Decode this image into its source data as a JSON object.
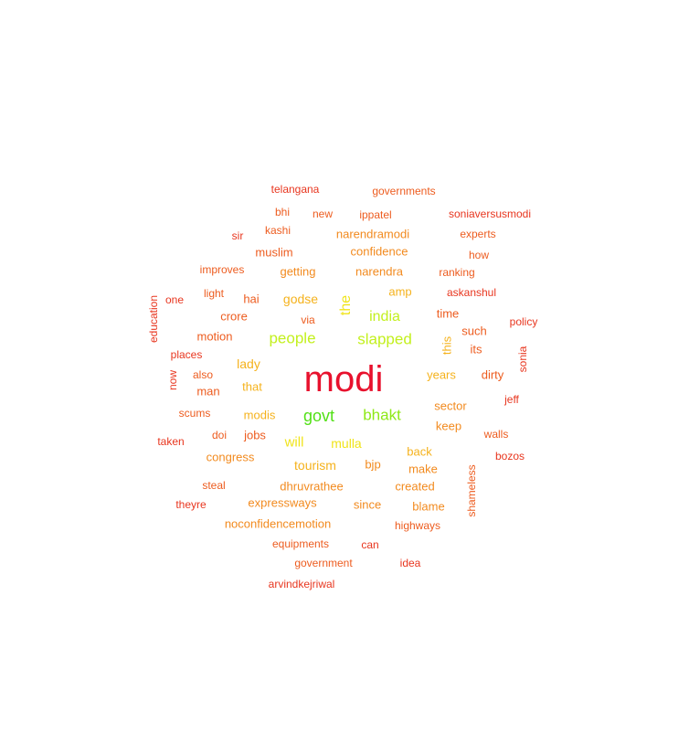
{
  "colors": {
    "red": "#e8112d",
    "red_orange": "#e8361f",
    "orange": "#ed5c1f",
    "amber": "#f28a1e",
    "gold": "#f5b21c",
    "yellow": "#f0e41a",
    "yellow_green": "#c3f01e",
    "green": "#8ee816",
    "bright_green": "#52e016"
  },
  "words": [
    {
      "text": "modi",
      "tier": "red",
      "vertical": false
    },
    {
      "text": "govt",
      "tier": "bright_green",
      "vertical": false
    },
    {
      "text": "bhakt",
      "tier": "green",
      "vertical": false
    },
    {
      "text": "slapped",
      "tier": "yellow_green",
      "vertical": false
    },
    {
      "text": "india",
      "tier": "yellow_green",
      "vertical": false
    },
    {
      "text": "people",
      "tier": "yellow_green",
      "vertical": false
    },
    {
      "text": "the",
      "tier": "yellow",
      "vertical": true
    },
    {
      "text": "will",
      "tier": "yellow",
      "vertical": false
    },
    {
      "text": "mulla",
      "tier": "yellow",
      "vertical": false
    },
    {
      "text": "godse",
      "tier": "gold",
      "vertical": false
    },
    {
      "text": "tourism",
      "tier": "gold",
      "vertical": false
    },
    {
      "text": "lady",
      "tier": "gold",
      "vertical": false
    },
    {
      "text": "that",
      "tier": "gold",
      "vertical": false
    },
    {
      "text": "modis",
      "tier": "gold",
      "vertical": false
    },
    {
      "text": "years",
      "tier": "gold",
      "vertical": false
    },
    {
      "text": "amp",
      "tier": "gold",
      "vertical": false
    },
    {
      "text": "back",
      "tier": "gold",
      "vertical": false
    },
    {
      "text": "this",
      "tier": "gold",
      "vertical": true
    },
    {
      "text": "getting",
      "tier": "amber",
      "vertical": false
    },
    {
      "text": "narendra",
      "tier": "amber",
      "vertical": false
    },
    {
      "text": "confidence",
      "tier": "amber",
      "vertical": false
    },
    {
      "text": "narendramodi",
      "tier": "amber",
      "vertical": false
    },
    {
      "text": "dhruvrathee",
      "tier": "amber",
      "vertical": false
    },
    {
      "text": "expressways",
      "tier": "amber",
      "vertical": false
    },
    {
      "text": "created",
      "tier": "amber",
      "vertical": false
    },
    {
      "text": "keep",
      "tier": "amber",
      "vertical": false
    },
    {
      "text": "sector",
      "tier": "amber",
      "vertical": false
    },
    {
      "text": "make",
      "tier": "amber",
      "vertical": false
    },
    {
      "text": "bjp",
      "tier": "amber",
      "vertical": false
    },
    {
      "text": "since",
      "tier": "amber",
      "vertical": false
    },
    {
      "text": "blame",
      "tier": "amber",
      "vertical": false
    },
    {
      "text": "noconfidencemotion",
      "tier": "amber",
      "vertical": false
    },
    {
      "text": "congress",
      "tier": "amber",
      "vertical": false
    },
    {
      "text": "jobs",
      "tier": "orange",
      "vertical": false
    },
    {
      "text": "hai",
      "tier": "orange",
      "vertical": false
    },
    {
      "text": "crore",
      "tier": "orange",
      "vertical": false
    },
    {
      "text": "motion",
      "tier": "orange",
      "vertical": false
    },
    {
      "text": "man",
      "tier": "orange",
      "vertical": false
    },
    {
      "text": "muslim",
      "tier": "orange",
      "vertical": false
    },
    {
      "text": "kashi",
      "tier": "orange",
      "vertical": false
    },
    {
      "text": "time",
      "tier": "orange",
      "vertical": false
    },
    {
      "text": "such",
      "tier": "orange",
      "vertical": false
    },
    {
      "text": "its",
      "tier": "orange",
      "vertical": false
    },
    {
      "text": "dirty",
      "tier": "orange",
      "vertical": false
    },
    {
      "text": "shameless",
      "tier": "orange",
      "vertical": true
    },
    {
      "text": "highways",
      "tier": "orange",
      "vertical": false
    },
    {
      "text": "via",
      "tier": "orange",
      "vertical": false
    },
    {
      "text": "doi",
      "tier": "orange",
      "vertical": false
    },
    {
      "text": "ippatel",
      "tier": "orange",
      "vertical": false
    },
    {
      "text": "new",
      "tier": "orange",
      "vertical": false
    },
    {
      "text": "bhi",
      "tier": "orange",
      "vertical": false
    },
    {
      "text": "experts",
      "tier": "orange",
      "vertical": false
    },
    {
      "text": "ranking",
      "tier": "orange",
      "vertical": false
    },
    {
      "text": "how",
      "tier": "orange",
      "vertical": false
    },
    {
      "text": "governments",
      "tier": "orange",
      "vertical": false
    },
    {
      "text": "equipments",
      "tier": "orange",
      "vertical": false
    },
    {
      "text": "government",
      "tier": "orange",
      "vertical": false
    },
    {
      "text": "steal",
      "tier": "orange",
      "vertical": false
    },
    {
      "text": "improves",
      "tier": "orange",
      "vertical": false
    },
    {
      "text": "light",
      "tier": "orange",
      "vertical": false
    },
    {
      "text": "scums",
      "tier": "orange",
      "vertical": false
    },
    {
      "text": "also",
      "tier": "orange",
      "vertical": false
    },
    {
      "text": "walls",
      "tier": "orange",
      "vertical": false
    },
    {
      "text": "telangana",
      "tier": "red_orange",
      "vertical": false
    },
    {
      "text": "soniaversusmodi",
      "tier": "red_orange",
      "vertical": false
    },
    {
      "text": "sir",
      "tier": "red_orange",
      "vertical": false
    },
    {
      "text": "askanshul",
      "tier": "red_orange",
      "vertical": false
    },
    {
      "text": "policy",
      "tier": "red_orange",
      "vertical": false
    },
    {
      "text": "one",
      "tier": "red_orange",
      "vertical": false
    },
    {
      "text": "education",
      "tier": "red_orange",
      "vertical": true
    },
    {
      "text": "places",
      "tier": "red_orange",
      "vertical": false
    },
    {
      "text": "now",
      "tier": "red_orange",
      "vertical": true
    },
    {
      "text": "sonia",
      "tier": "red_orange",
      "vertical": true
    },
    {
      "text": "jeff",
      "tier": "red_orange",
      "vertical": false
    },
    {
      "text": "taken",
      "tier": "red_orange",
      "vertical": false
    },
    {
      "text": "bozos",
      "tier": "red_orange",
      "vertical": false
    },
    {
      "text": "theyre",
      "tier": "red_orange",
      "vertical": false
    },
    {
      "text": "can",
      "tier": "red_orange",
      "vertical": false
    },
    {
      "text": "idea",
      "tier": "red_orange",
      "vertical": false
    },
    {
      "text": "arvindkejriwal",
      "tier": "red_orange",
      "vertical": false
    }
  ]
}
